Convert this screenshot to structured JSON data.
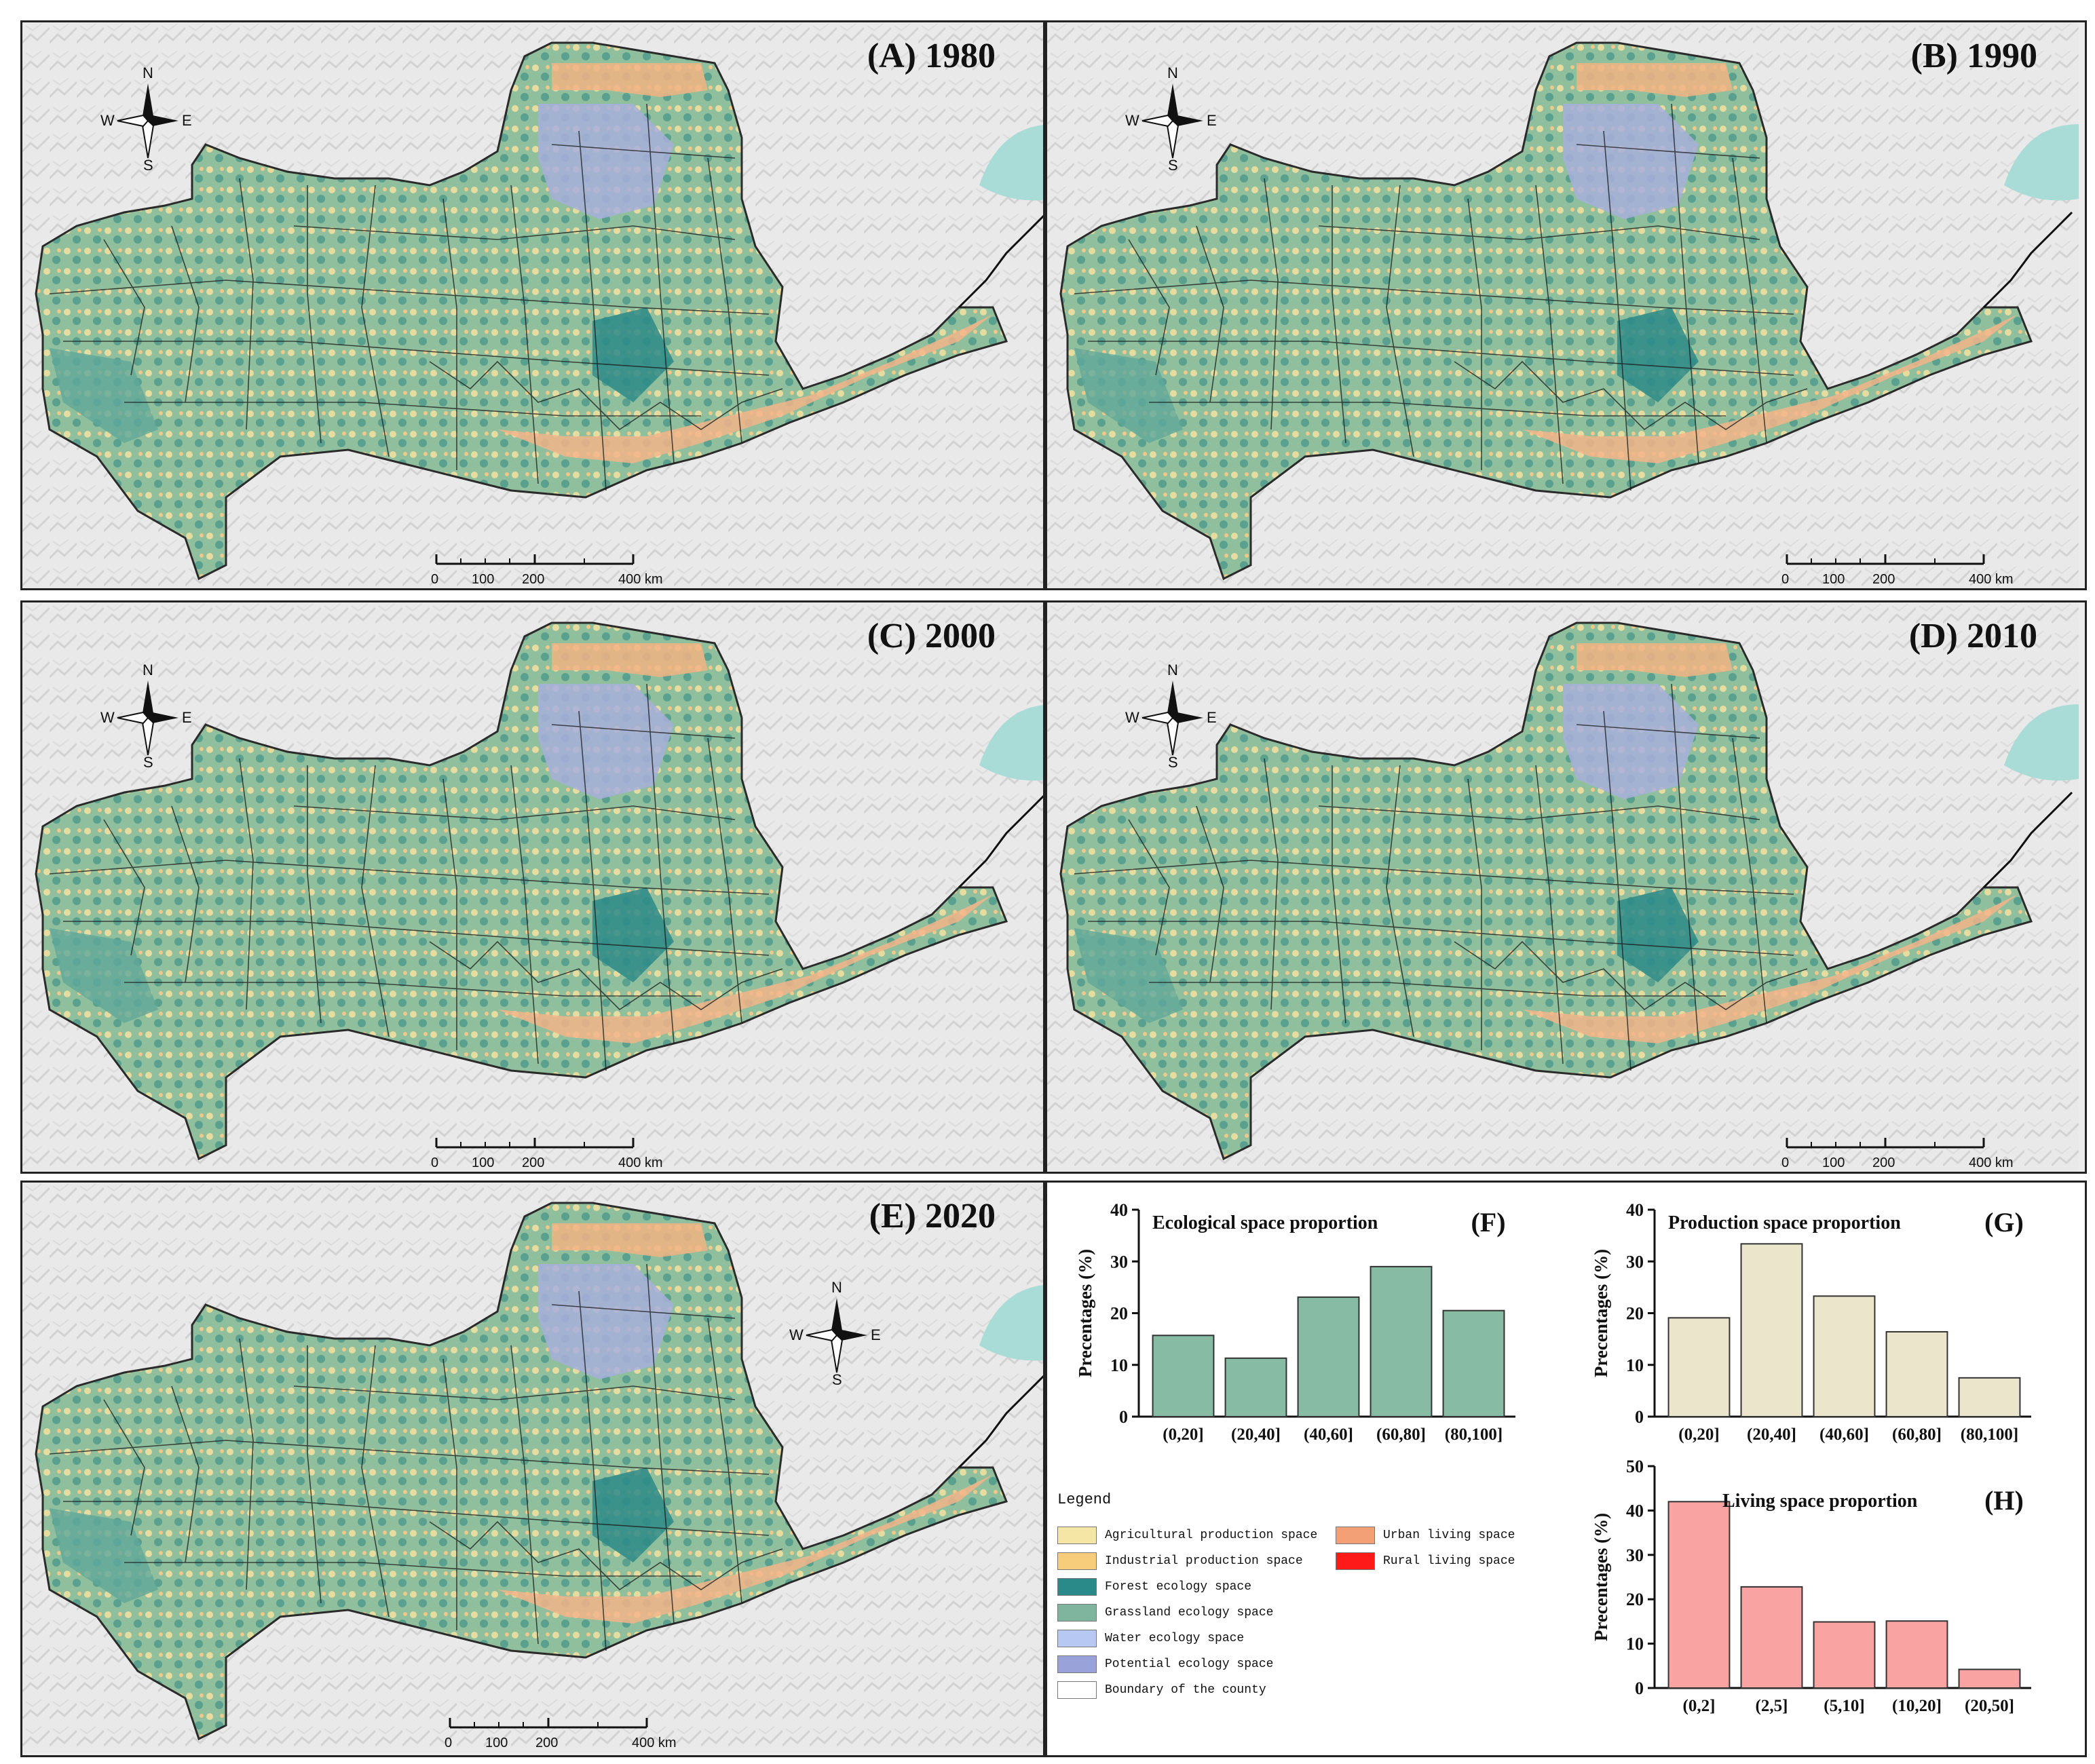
{
  "maps": [
    {
      "title": "(A) 1980"
    },
    {
      "title": "(B) 1990"
    },
    {
      "title": "(C) 2000"
    },
    {
      "title": "(D) 2010"
    },
    {
      "title": "(E) 2020"
    }
  ],
  "compass": {
    "n": "N",
    "s": "S",
    "w": "W",
    "e": "E"
  },
  "scale_bar": {
    "labels": [
      "0",
      "100",
      "200",
      "400 km"
    ]
  },
  "colors": {
    "background_terrain": "#e6e6e6",
    "agricultural": "#f6e6a6",
    "industrial": "#f7cc7a",
    "forest": "#2a8a8a",
    "grassland": "#7fb59f",
    "water": "#b7c9f2",
    "potential": "#9aa3d9",
    "urban": "#f4a077",
    "rural": "#ff1a1a",
    "sea": "#a9dcd6",
    "ecological_bar": "#88bba4",
    "production_bar": "#ebe5cb",
    "living_bar": "#f9a3a3"
  },
  "chart_data": [
    {
      "type": "bar",
      "panel_label": "(F)",
      "title": "Ecological space proportion",
      "ylabel": "Precentages (%)",
      "xlabel": "",
      "categories": [
        "(0,20]",
        "(20,40]",
        "(40,60]",
        "(60,80]",
        "(80,100]"
      ],
      "values": [
        15.7,
        11.3,
        23.1,
        29.0,
        20.5
      ],
      "ylim": [
        0,
        40
      ],
      "yticks": [
        "0",
        "10",
        "20",
        "30",
        "40"
      ]
    },
    {
      "type": "bar",
      "panel_label": "(G)",
      "title": "Production space proportion",
      "ylabel": "Precentages (%)",
      "xlabel": "",
      "categories": [
        "(0,20]",
        "(20,40]",
        "(40,60]",
        "(60,80]",
        "(80,100]"
      ],
      "values": [
        19.1,
        33.4,
        23.3,
        16.4,
        7.5
      ],
      "ylim": [
        0,
        40
      ],
      "yticks": [
        "0",
        "10",
        "20",
        "30",
        "40"
      ]
    },
    {
      "type": "bar",
      "panel_label": "(H)",
      "title": "Living space proportion",
      "ylabel": "Precentages (%)",
      "xlabel": "",
      "categories": [
        "(0,2]",
        "(2,5]",
        "(5,10]",
        "(10,20]",
        "(20,50]"
      ],
      "values": [
        42.0,
        22.8,
        14.9,
        15.1,
        4.2
      ],
      "ylim": [
        0,
        50
      ],
      "yticks": [
        "0",
        "10",
        "20",
        "30",
        "40",
        "50"
      ]
    }
  ],
  "legend": {
    "heading": "Legend",
    "items": [
      {
        "label": "Agricultural production space",
        "color": "#f6e6a6"
      },
      {
        "label": "Industrial production space",
        "color": "#f7cc7a"
      },
      {
        "label": "Forest ecology space",
        "color": "#2a8a8a"
      },
      {
        "label": "Grassland ecology space",
        "color": "#7fb59f"
      },
      {
        "label": "Water ecology space",
        "color": "#b7c9f2"
      },
      {
        "label": "Potential ecology space",
        "color": "#9aa3d9"
      },
      {
        "label": "Boundary of the county",
        "color": "#ffffff"
      },
      {
        "label": "Urban living space",
        "color": "#f4a077"
      },
      {
        "label": "Rural living space",
        "color": "#ff1a1a"
      }
    ]
  }
}
